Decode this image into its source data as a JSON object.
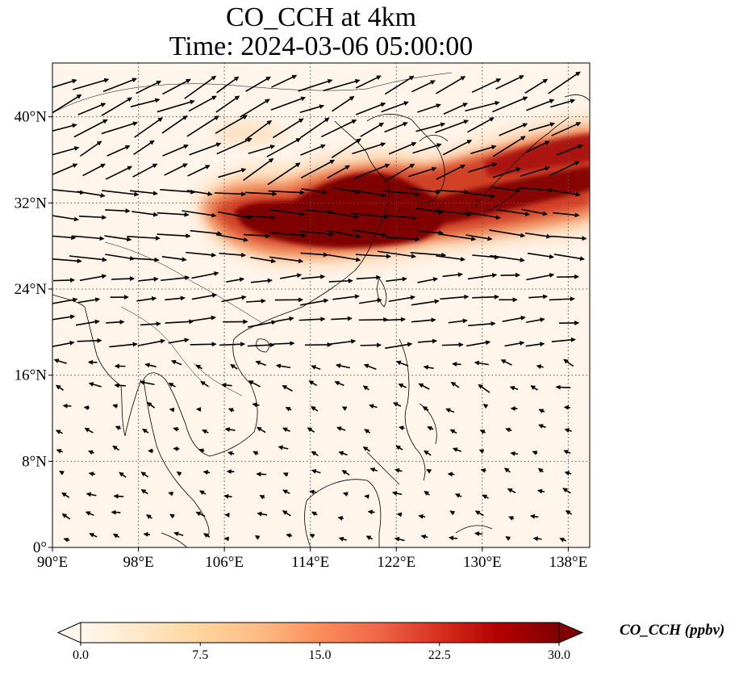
{
  "title": {
    "line1": "CO_CCH at 4km",
    "line2": "Time: 2024-03-06 05:00:00"
  },
  "map": {
    "variable": "CO_CCH",
    "level": "4km",
    "time": "2024-03-06 05:00:00",
    "lon_range": [
      90,
      140
    ],
    "lat_range": [
      0,
      45
    ],
    "lon_ticks": [
      {
        "value": 90,
        "label": "90°E"
      },
      {
        "value": 98,
        "label": "98°E"
      },
      {
        "value": 106,
        "label": "106°E"
      },
      {
        "value": 114,
        "label": "114°E"
      },
      {
        "value": 122,
        "label": "122°E"
      },
      {
        "value": 130,
        "label": "130°E"
      },
      {
        "value": 138,
        "label": "138°E"
      }
    ],
    "lat_ticks": [
      {
        "value": 0,
        "label": "0°"
      },
      {
        "value": 8,
        "label": "8°N"
      },
      {
        "value": 16,
        "label": "16°N"
      },
      {
        "value": 24,
        "label": "24°N"
      },
      {
        "value": 32,
        "label": "32°N"
      },
      {
        "value": 40,
        "label": "40°N"
      }
    ],
    "gridlines": true,
    "plume_color": "#7f0000",
    "background_color": "#fff5eb",
    "wind_vectors": "black arrows, westerly flow in north, weak northeasterly flow in south"
  },
  "colorbar": {
    "label": "CO_CCH (ppbv)",
    "min": 0.0,
    "max": 30.0,
    "ticks": [
      "0.0",
      "7.5",
      "15.0",
      "22.5",
      "30.0"
    ],
    "extend": "both",
    "colormap": "OrRd",
    "colors": [
      "#fff7ec",
      "#fee8c8",
      "#fdd49e",
      "#fdbb84",
      "#fc8d59",
      "#ef6548",
      "#d7301f",
      "#b30000",
      "#7f0000"
    ]
  }
}
